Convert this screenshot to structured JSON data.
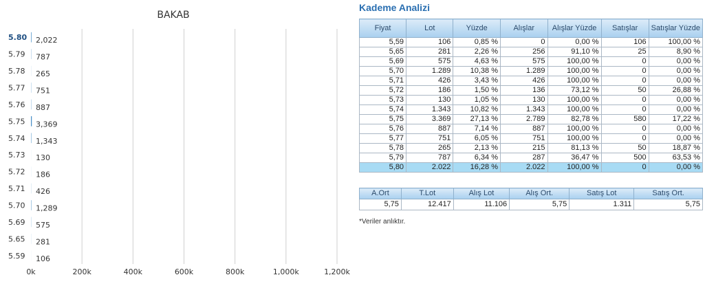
{
  "chart_data": {
    "type": "bar",
    "orientation": "horizontal",
    "title": "BAKAB",
    "categories": [
      "5.80",
      "5.79",
      "5.78",
      "5.77",
      "5.76",
      "5.75",
      "5.74",
      "5.73",
      "5.72",
      "5.71",
      "5.70",
      "5.69",
      "5.65",
      "5.59"
    ],
    "values": [
      2022,
      787,
      265,
      751,
      887,
      3369,
      1343,
      130,
      186,
      426,
      1289,
      575,
      281,
      106
    ],
    "data_labels": [
      "2,022",
      "787",
      "265",
      "751",
      "887",
      "3,369",
      "1,343",
      "130",
      "186",
      "426",
      "1,289",
      "575",
      "281",
      "106"
    ],
    "highlight_category": "5.80",
    "x_ticks": [
      "0k",
      "200k",
      "400k",
      "600k",
      "800k",
      "1,000k",
      "1,200k"
    ],
    "x_tick_values": [
      0,
      200000,
      400000,
      600000,
      800000,
      1000000,
      1200000
    ],
    "xlim": [
      0,
      1200000
    ],
    "grid": true
  },
  "analysis": {
    "title": "Kademe Analizi",
    "headers": [
      "Fiyat",
      "Lot",
      "Yüzde",
      "Alışlar",
      "Alışlar Yüzde",
      "Satışlar",
      "Satışlar Yüzde"
    ],
    "rows": [
      [
        "5,59",
        "106",
        "0,85 %",
        "0",
        "0,00 %",
        "106",
        "100,00 %"
      ],
      [
        "5,65",
        "281",
        "2,26 %",
        "256",
        "91,10 %",
        "25",
        "8,90 %"
      ],
      [
        "5,69",
        "575",
        "4,63 %",
        "575",
        "100,00 %",
        "0",
        "0,00 %"
      ],
      [
        "5,70",
        "1.289",
        "10,38 %",
        "1.289",
        "100,00 %",
        "0",
        "0,00 %"
      ],
      [
        "5,71",
        "426",
        "3,43 %",
        "426",
        "100,00 %",
        "0",
        "0,00 %"
      ],
      [
        "5,72",
        "186",
        "1,50 %",
        "136",
        "73,12 %",
        "50",
        "26,88 %"
      ],
      [
        "5,73",
        "130",
        "1,05 %",
        "130",
        "100,00 %",
        "0",
        "0,00 %"
      ],
      [
        "5,74",
        "1.343",
        "10,82 %",
        "1.343",
        "100,00 %",
        "0",
        "0,00 %"
      ],
      [
        "5,75",
        "3.369",
        "27,13 %",
        "2.789",
        "82,78 %",
        "580",
        "17,22 %"
      ],
      [
        "5,76",
        "887",
        "7,14 %",
        "887",
        "100,00 %",
        "0",
        "0,00 %"
      ],
      [
        "5,77",
        "751",
        "6,05 %",
        "751",
        "100,00 %",
        "0",
        "0,00 %"
      ],
      [
        "5,78",
        "265",
        "2,13 %",
        "215",
        "81,13 %",
        "50",
        "18,87 %"
      ],
      [
        "5,79",
        "787",
        "6,34 %",
        "287",
        "36,47 %",
        "500",
        "63,53 %"
      ],
      [
        "5,80",
        "2.022",
        "16,28 %",
        "2.022",
        "100,00 %",
        "0",
        "0,00 %"
      ]
    ],
    "highlight_row": 13
  },
  "summary": {
    "headers": [
      "A.Ort",
      "T.Lot",
      "Alış Lot",
      "Alış Ort.",
      "Satış Lot",
      "Satış Ort."
    ],
    "values": [
      "5,75",
      "12.417",
      "11.106",
      "5,75",
      "1.311",
      "5,75"
    ]
  },
  "footnote": "*Veriler anlıktır."
}
